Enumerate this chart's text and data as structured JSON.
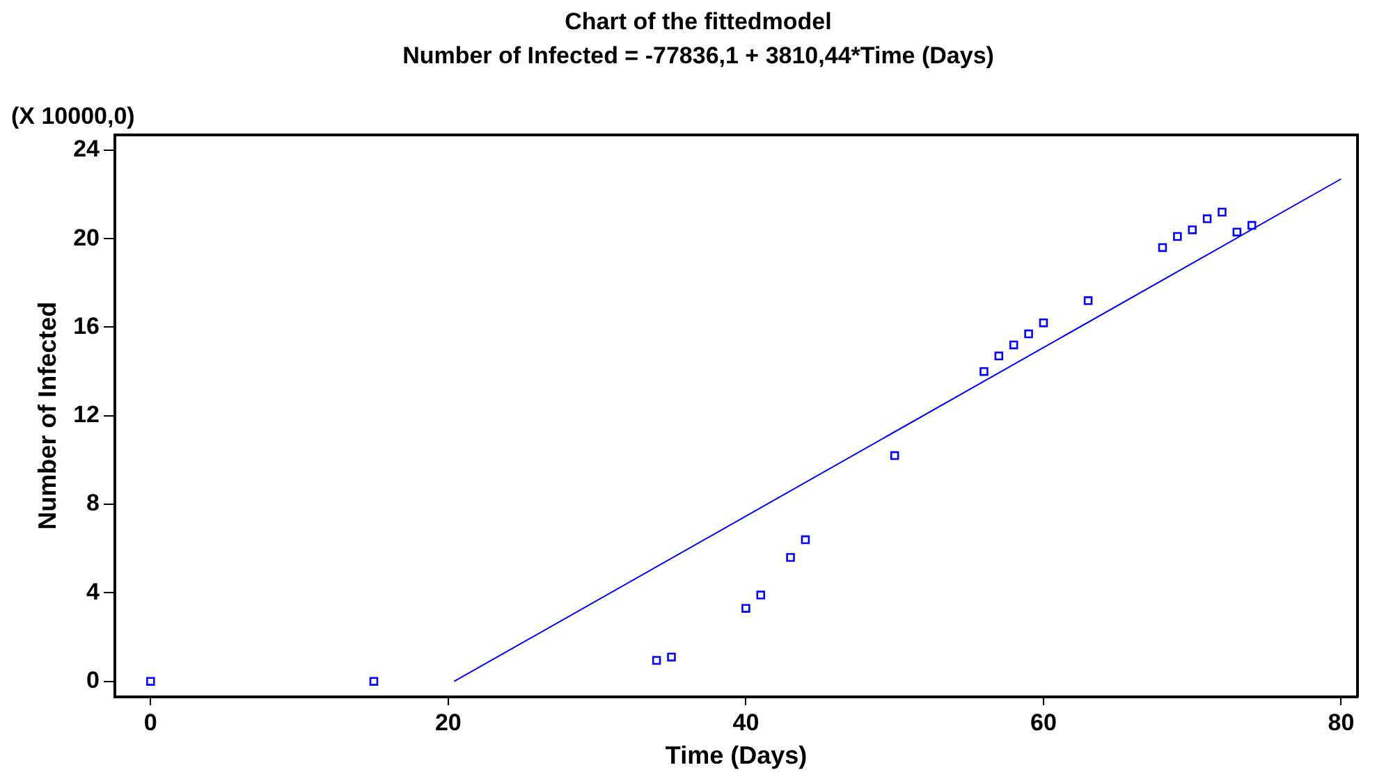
{
  "chart_data": {
    "type": "scatter",
    "title": "Chart of the fittedmodel",
    "subtitle": "Number of Infected = -77836,1 + 3810,44*Time (Days)",
    "xlabel": "Time (Days)",
    "ylabel": "Number of Infected",
    "annotations": [
      "(X 10000,0)"
    ],
    "xlim": [
      -2.4,
      81.1
    ],
    "xticks": [
      0,
      20,
      40,
      60,
      80
    ],
    "ylim": [
      -0.7,
      24.7
    ],
    "yticks": [
      0,
      4,
      8,
      12,
      16,
      20,
      24
    ],
    "grid": false,
    "legend": false,
    "series": [
      {
        "marker": "square",
        "color": "#0000ff",
        "x": [
          0,
          15,
          34,
          35,
          40,
          41,
          43,
          44,
          50,
          56,
          57,
          58,
          59,
          60,
          63,
          68,
          69,
          70,
          71,
          72,
          73,
          74
        ],
        "values": [
          0,
          0,
          0.95,
          1.1,
          3.3,
          3.9,
          5.6,
          6.4,
          10.2,
          14.0,
          14.7,
          15.2,
          15.7,
          16.2,
          17.2,
          19.6,
          20.1,
          20.4,
          20.9,
          21.2,
          20.3,
          20.6
        ]
      },
      {
        "type": "line",
        "marker": "none",
        "color": "#0000ff",
        "line_style": "solid",
        "x": [
          20.4,
          80
        ],
        "values": [
          0,
          22.7
        ]
      }
    ]
  }
}
